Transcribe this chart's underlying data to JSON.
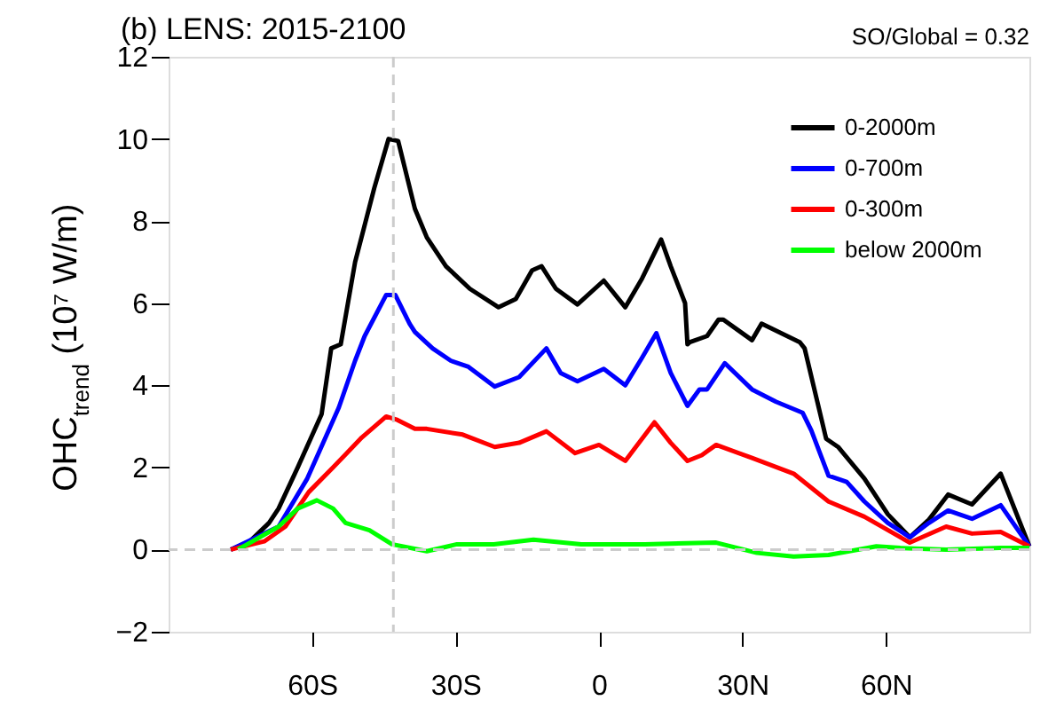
{
  "chart_data": {
    "type": "line",
    "title": "(b) LENS: 2015-2100",
    "ylabel": "OHC$_{trend}$ (10⁷ W/m)",
    "annotations": [
      "SO/Global =  0.32"
    ],
    "xlim": [
      -90,
      90
    ],
    "xticks": [
      {
        "value": -60,
        "label": "60S"
      },
      {
        "value": -30,
        "label": "30S"
      },
      0,
      {
        "value": 30,
        "label": "30N"
      },
      {
        "value": 60,
        "label": "60N"
      }
    ],
    "ylim": [
      -2,
      12
    ],
    "yticks": [
      -2,
      0,
      2,
      4,
      6,
      8,
      10,
      12
    ],
    "grid": false,
    "legend": "top right",
    "marker": "none",
    "line_style": "solid",
    "ref_lines": [
      {
        "axis": "y",
        "value": 0,
        "color": "#cccccc",
        "line_style": "dashed"
      },
      {
        "axis": "x",
        "value": -43,
        "color": "#cccccc",
        "line_style": "dashed"
      }
    ],
    "series": [
      {
        "name": "0-2000m",
        "color": "#000000",
        "x": [
          -77,
          -73,
          -69,
          -67,
          -63,
          -58,
          -56,
          -54,
          -51,
          -47,
          -44,
          -42,
          -38.5,
          -36,
          -32,
          -27,
          -21,
          -17.4,
          -14,
          -12,
          -9,
          -4.5,
          1,
          5.5,
          9,
          13,
          15,
          18,
          18.5,
          19,
          22.6,
          25,
          26,
          29.6,
          32,
          34,
          42,
          43,
          47.5,
          50,
          55.5,
          60.4,
          65,
          69,
          73,
          78,
          84,
          90
        ],
        "values": [
          0,
          0.2,
          0.65,
          1.0,
          2.0,
          3.3,
          4.9,
          5.0,
          7.0,
          8.8,
          10.0,
          9.95,
          8.3,
          7.6,
          6.9,
          6.35,
          5.9,
          6.1,
          6.8,
          6.9,
          6.35,
          5.97,
          6.55,
          5.9,
          6.6,
          7.55,
          6.9,
          6.0,
          5.0,
          5.05,
          5.2,
          5.6,
          5.6,
          5.3,
          5.1,
          5.5,
          5.05,
          4.9,
          2.7,
          2.5,
          1.73,
          0.86,
          0.3,
          0.73,
          1.34,
          1.1,
          1.85,
          0.08
        ]
      },
      {
        "name": "0-700m",
        "color": "#0000ff",
        "x": [
          -77,
          -67,
          -61,
          -54.4,
          -51,
          -49,
          -44.5,
          -42.6,
          -39.6,
          -38.5,
          -34.8,
          -31,
          -27.3,
          -21.8,
          -16.7,
          -11,
          -8,
          -4.5,
          1,
          5.5,
          9,
          12,
          15,
          18.5,
          21,
          22.6,
          26.3,
          32,
          37,
          42.6,
          44.4,
          48,
          51.8,
          55.5,
          60.4,
          65,
          69,
          73,
          78,
          84,
          90
        ],
        "values": [
          0,
          0.56,
          1.73,
          3.46,
          4.6,
          5.2,
          6.2,
          6.2,
          5.5,
          5.3,
          4.9,
          4.6,
          4.45,
          3.97,
          4.2,
          4.9,
          4.3,
          4.1,
          4.4,
          4.0,
          4.67,
          5.27,
          4.3,
          3.5,
          3.9,
          3.9,
          4.54,
          3.9,
          3.6,
          3.33,
          2.9,
          1.8,
          1.65,
          1.17,
          0.65,
          0.3,
          0.65,
          0.95,
          0.75,
          1.08,
          0.08
        ]
      },
      {
        "name": "0-300m",
        "color": "#ff0000",
        "x": [
          -77,
          -70,
          -65.6,
          -60.7,
          -55.6,
          -49.6,
          -44.5,
          -42.2,
          -38.5,
          -36,
          -28.5,
          -21.8,
          -16.7,
          -11,
          -5,
          0,
          5.5,
          11.6,
          15,
          18.5,
          21.5,
          24.5,
          32,
          40.7,
          48,
          55.5,
          65,
          72.6,
          78,
          84,
          90
        ],
        "values": [
          0,
          0.2,
          0.56,
          1.4,
          2.0,
          2.73,
          3.24,
          3.16,
          2.94,
          2.94,
          2.8,
          2.5,
          2.6,
          2.88,
          2.35,
          2.55,
          2.16,
          3.1,
          2.6,
          2.16,
          2.3,
          2.55,
          2.23,
          1.85,
          1.17,
          0.8,
          0.17,
          0.56,
          0.39,
          0.43,
          0.08
        ]
      },
      {
        "name": "below 2000m",
        "color": "#00ff00",
        "x": [
          -75.5,
          -67,
          -63,
          -59,
          -55.6,
          -53,
          -48,
          -43.3,
          -36,
          -29.7,
          -22,
          -13.7,
          -3.7,
          9.6,
          24.5,
          33,
          40.7,
          48,
          58,
          63,
          72.6,
          84,
          90
        ],
        "values": [
          0,
          0.56,
          1.0,
          1.2,
          1.0,
          0.65,
          0.47,
          0.13,
          -0.04,
          0.13,
          0.13,
          0.24,
          0.13,
          0.13,
          0.17,
          -0.08,
          -0.17,
          -0.13,
          0.08,
          0.04,
          0,
          0.04,
          0.04
        ]
      }
    ]
  }
}
